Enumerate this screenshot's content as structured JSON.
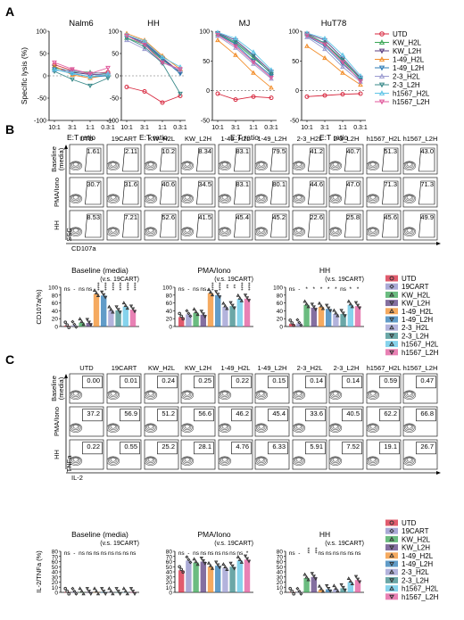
{
  "panels": {
    "A": "A",
    "B": "B",
    "C": "C"
  },
  "colors": {
    "UTD": "#d7263d",
    "19CART": "#8e8ec8",
    "KW_H2L": "#3aa655",
    "KW_L2H": "#5b3f80",
    "1-49_H2L": "#f28e2b",
    "1-49_L2H": "#2c7bb6",
    "2-3_H2L": "#9a9ad0",
    "2-3_L2H": "#3a8a8a",
    "h1567_H2L": "#5ec4e6",
    "h1567_L2H": "#e0579b"
  },
  "panelA": {
    "ylabel": "Specific lysis (%)",
    "xlabel": "E:T ratio",
    "ticks_x": [
      "10:1",
      "3:1",
      "1:1",
      "0.3:1"
    ],
    "legend": [
      "UTD",
      "KW_H2L",
      "KW_L2H",
      "1-49_H2L",
      "1-49_L2H",
      "2-3_H2L",
      "2-3_L2H",
      "h1567_H2L",
      "h1567_L2H"
    ]
  },
  "chart_data": [
    {
      "type": "line",
      "title": "Nalm6",
      "xlabel": "E:T ratio",
      "ylabel": "Specific lysis (%)",
      "x": [
        "10:1",
        "3:1",
        "1:1",
        "0.3:1"
      ],
      "ylim": [
        -100,
        100
      ],
      "yticks": [
        -100,
        -50,
        0,
        50,
        100
      ],
      "series": [
        {
          "name": "UTD",
          "values": [
            25,
            12,
            5,
            8
          ]
        },
        {
          "name": "KW_H2L",
          "values": [
            18,
            10,
            8,
            4
          ]
        },
        {
          "name": "KW_L2H",
          "values": [
            20,
            8,
            3,
            2
          ]
        },
        {
          "name": "1-49_H2L",
          "values": [
            22,
            2,
            -5,
            2
          ]
        },
        {
          "name": "1-49_L2H",
          "values": [
            15,
            5,
            -2,
            0
          ]
        },
        {
          "name": "2-3_H2L",
          "values": [
            12,
            12,
            6,
            6
          ]
        },
        {
          "name": "2-3_L2H",
          "values": [
            10,
            -8,
            -22,
            -5
          ]
        },
        {
          "name": "h1567_H2L",
          "values": [
            14,
            6,
            -2,
            3
          ]
        },
        {
          "name": "h1567_L2H",
          "values": [
            30,
            15,
            5,
            18
          ]
        }
      ]
    },
    {
      "type": "line",
      "title": "HH",
      "xlabel": "E:T ratio",
      "x": [
        "10:1",
        "3:1",
        "1:1",
        "0.3:1"
      ],
      "ylim": [
        -100,
        100
      ],
      "yticks": [
        -100,
        -50,
        0,
        50,
        100
      ],
      "series": [
        {
          "name": "UTD",
          "values": [
            -25,
            -35,
            -60,
            -45
          ]
        },
        {
          "name": "KW_H2L",
          "values": [
            85,
            70,
            35,
            10
          ]
        },
        {
          "name": "KW_L2H",
          "values": [
            90,
            75,
            40,
            8
          ]
        },
        {
          "name": "1-49_H2L",
          "values": [
            95,
            80,
            45,
            15
          ]
        },
        {
          "name": "1-49_L2H",
          "values": [
            90,
            72,
            38,
            5
          ]
        },
        {
          "name": "2-3_H2L",
          "values": [
            80,
            60,
            30,
            12
          ]
        },
        {
          "name": "2-3_L2H",
          "values": [
            85,
            65,
            28,
            -40
          ]
        },
        {
          "name": "h1567_H2L",
          "values": [
            92,
            78,
            42,
            20
          ]
        },
        {
          "name": "h1567_L2H",
          "values": [
            90,
            70,
            30,
            15
          ]
        }
      ]
    },
    {
      "type": "line",
      "title": "MJ",
      "xlabel": "E:T ratio",
      "x": [
        "10:1",
        "3:1",
        "1:1",
        "0.3:1"
      ],
      "ylim": [
        -50,
        100
      ],
      "yticks": [
        -50,
        0,
        50,
        100
      ],
      "series": [
        {
          "name": "UTD",
          "values": [
            -5,
            -15,
            -10,
            -12
          ]
        },
        {
          "name": "KW_H2L",
          "values": [
            95,
            80,
            55,
            30
          ]
        },
        {
          "name": "KW_L2H",
          "values": [
            97,
            85,
            60,
            32
          ]
        },
        {
          "name": "1-49_H2L",
          "values": [
            85,
            60,
            30,
            5
          ]
        },
        {
          "name": "1-49_L2H",
          "values": [
            95,
            78,
            50,
            25
          ]
        },
        {
          "name": "2-3_H2L",
          "values": [
            92,
            72,
            45,
            20
          ]
        },
        {
          "name": "2-3_L2H",
          "values": [
            96,
            82,
            58,
            28
          ]
        },
        {
          "name": "h1567_H2L",
          "values": [
            98,
            88,
            65,
            35
          ]
        },
        {
          "name": "h1567_L2H",
          "values": [
            94,
            75,
            48,
            22
          ]
        }
      ]
    },
    {
      "type": "line",
      "title": "HuT78",
      "xlabel": "E:T ratio",
      "x": [
        "10:1",
        "3:1",
        "1:1",
        "0.3:1"
      ],
      "ylim": [
        -50,
        100
      ],
      "yticks": [
        -50,
        0,
        50,
        100
      ],
      "series": [
        {
          "name": "UTD",
          "values": [
            -10,
            -8,
            -6,
            -5
          ]
        },
        {
          "name": "KW_H2L",
          "values": [
            95,
            80,
            50,
            20
          ]
        },
        {
          "name": "KW_L2H",
          "values": [
            96,
            85,
            55,
            22
          ]
        },
        {
          "name": "1-49_H2L",
          "values": [
            75,
            55,
            30,
            10
          ]
        },
        {
          "name": "1-49_L2H",
          "values": [
            92,
            75,
            45,
            18
          ]
        },
        {
          "name": "2-3_H2L",
          "values": [
            90,
            70,
            40,
            15
          ]
        },
        {
          "name": "2-3_L2H",
          "values": [
            94,
            80,
            52,
            20
          ]
        },
        {
          "name": "h1567_H2L",
          "values": [
            97,
            88,
            60,
            25
          ]
        },
        {
          "name": "h1567_L2H",
          "values": [
            93,
            78,
            48,
            16
          ]
        }
      ]
    },
    {
      "type": "bar",
      "title": "Baseline (media)",
      "subtitle": "(v.s. 19CART)",
      "ylabel": "CD107a(%)",
      "categories": [
        "UTD",
        "19CART",
        "KW_H2L",
        "KW_L2H",
        "1-49_H2L",
        "1-49_L2H",
        "2-3_H2L",
        "2-3_L2H",
        "h1567_H2L",
        "h1567_L2H"
      ],
      "values": [
        2,
        3,
        10,
        9,
        83,
        79,
        41,
        41,
        51,
        43
      ],
      "ylim": [
        0,
        100
      ],
      "yticks": [
        0,
        20,
        40,
        60,
        80,
        100
      ],
      "significance": [
        "ns",
        "-",
        "ns",
        "ns",
        "****",
        "****",
        "****",
        "****",
        "****",
        "****"
      ]
    },
    {
      "type": "bar",
      "title": "PMA/Iono",
      "subtitle": "(v.s. 19CART)",
      "categories": [
        "UTD",
        "19CART",
        "KW_H2L",
        "KW_L2H",
        "1-49_H2L",
        "1-49_L2H",
        "2-3_H2L",
        "2-3_L2H",
        "h1567_H2L",
        "h1567_L2H"
      ],
      "values": [
        24,
        31,
        35,
        30,
        85,
        80,
        50,
        52,
        70,
        71
      ],
      "ylim": [
        0,
        100
      ],
      "yticks": [
        0,
        20,
        40,
        60,
        80,
        100
      ],
      "significance": [
        "ns",
        "-",
        "ns",
        "ns",
        "****",
        "****",
        "**",
        "**",
        "****",
        "****"
      ]
    },
    {
      "type": "bar",
      "title": "HH",
      "subtitle": "(v.s. 19CART)",
      "categories": [
        "UTD",
        "19CART",
        "KW_H2L",
        "KW_L2H",
        "1-49_H2L",
        "1-49_L2H",
        "2-3_H2L",
        "2-3_L2H",
        "h1567_H2L",
        "h1567_L2H"
      ],
      "values": [
        7,
        8,
        55,
        48,
        50,
        45,
        32,
        32,
        55,
        52
      ],
      "ylim": [
        0,
        100
      ],
      "yticks": [
        0,
        20,
        40,
        60,
        80,
        100
      ],
      "significance": [
        "ns",
        "-",
        "*",
        "*",
        "*",
        "*",
        "*",
        "ns",
        "*",
        "*"
      ]
    },
    {
      "type": "bar",
      "title": "Baseline (media)",
      "subtitle": "(v.s. 19CART)",
      "ylabel": "IL-2/TNFa (%)",
      "categories": [
        "UTD",
        "19CART",
        "KW_H2L",
        "KW_L2H",
        "1-49_H2L",
        "1-49_L2H",
        "2-3_H2L",
        "2-3_L2H",
        "h1567_H2L",
        "h1567_L2H"
      ],
      "values": [
        0.5,
        0.5,
        0.5,
        0.5,
        0.5,
        0.5,
        0.5,
        0.5,
        0.5,
        0.5
      ],
      "ylim": [
        0,
        80
      ],
      "yticks": [
        0,
        10,
        20,
        30,
        40,
        50,
        60,
        70,
        80
      ],
      "significance": [
        "ns",
        "-",
        "ns",
        "ns",
        "ns",
        "ns",
        "ns",
        "ns",
        "ns",
        "ns"
      ]
    },
    {
      "type": "bar",
      "title": "PMA/Iono",
      "subtitle": "(v.s. 19CART)",
      "categories": [
        "UTD",
        "19CART",
        "KW_H2L",
        "KW_L2H",
        "1-49_H2L",
        "1-49_L2H",
        "2-3_H2L",
        "2-3_L2H",
        "h1567_H2L",
        "h1567_L2H"
      ],
      "values": [
        43,
        62,
        58,
        60,
        50,
        52,
        48,
        50,
        62,
        64
      ],
      "ylim": [
        0,
        80
      ],
      "yticks": [
        0,
        10,
        20,
        30,
        40,
        50,
        60,
        70,
        80
      ],
      "significance": [
        "ns",
        "-",
        "ns",
        "ns",
        "ns",
        "ns",
        "ns",
        "ns",
        "ns",
        "*"
      ]
    },
    {
      "type": "bar",
      "title": "HH",
      "subtitle": "(v.s. 19CART)",
      "categories": [
        "UTD",
        "19CART",
        "KW_H2L",
        "KW_L2H",
        "1-49_H2L",
        "1-49_L2H",
        "2-3_H2L",
        "2-3_L2H",
        "h1567_H2L",
        "h1567_L2H"
      ],
      "values": [
        0.5,
        0.5,
        28,
        30,
        5,
        6,
        6,
        8,
        20,
        24
      ],
      "ylim": [
        0,
        80
      ],
      "yticks": [
        0,
        10,
        20,
        30,
        40,
        50,
        60,
        70,
        80
      ],
      "significance": [
        "ns",
        "-",
        "***",
        "***",
        "ns",
        "ns",
        "ns",
        "ns",
        "ns",
        "ns"
      ]
    }
  ],
  "flowB": {
    "columns": [
      "UTD",
      "19CART",
      "KW_H2L",
      "KW_L2H",
      "1-49_H2L",
      "1-49_L2H",
      "2-3_H2L",
      "2-3_L2H",
      "h1567_H2L",
      "h1567_L2H"
    ],
    "rows": [
      {
        "label": "Baseline\n(media)",
        "values": [
          "1.61",
          "2.11",
          "10.2",
          "8.34",
          "83.1",
          "79.5",
          "41.2",
          "40.7",
          "51.3",
          "43.0"
        ]
      },
      {
        "label": "PMA/Iono",
        "values": [
          "30.7",
          "31.6",
          "40.6",
          "34.5",
          "83.1",
          "80.1",
          "44.6",
          "47.0",
          "71.3",
          "71.3"
        ]
      },
      {
        "label": "HH",
        "values": [
          "8.53",
          "7.21",
          "52.6",
          "41.5",
          "45.4",
          "45.2",
          "22.6",
          "25.8",
          "45.6",
          "49.9"
        ]
      }
    ],
    "yaxis": "SSC",
    "xaxis": "CD107a"
  },
  "flowC": {
    "columns": [
      "UTD",
      "19CART",
      "KW_H2L",
      "KW_L2H",
      "1-49_H2L",
      "1-49_L2H",
      "2-3_H2L",
      "2-3_L2H",
      "h1567_H2L",
      "h1567_L2H"
    ],
    "rows": [
      {
        "label": "Baseline\n(media)",
        "values": [
          "0.00",
          "0.01",
          "0.24",
          "0.25",
          "0.22",
          "0.15",
          "0.14",
          "0.14",
          "0.59",
          "0.47"
        ]
      },
      {
        "label": "PMA/Iono",
        "values": [
          "37.2",
          "56.9",
          "51.2",
          "56.6",
          "46.2",
          "45.4",
          "33.6",
          "40.5",
          "62.2",
          "66.8"
        ]
      },
      {
        "label": "HH",
        "values": [
          "0.22",
          "0.55",
          "25.2",
          "28.1",
          "4.76",
          "6.33",
          "5.91",
          "7.52",
          "19.1",
          "26.7"
        ]
      }
    ],
    "yaxis": "TNFa",
    "xaxis": "IL-2"
  },
  "barLegend": [
    "UTD",
    "19CART",
    "KW_H2L",
    "KW_L2H",
    "1-49_H2L",
    "1-49_L2H",
    "2-3_H2L",
    "2-3_L2H",
    "h1567_H2L",
    "h1567_L2H"
  ]
}
